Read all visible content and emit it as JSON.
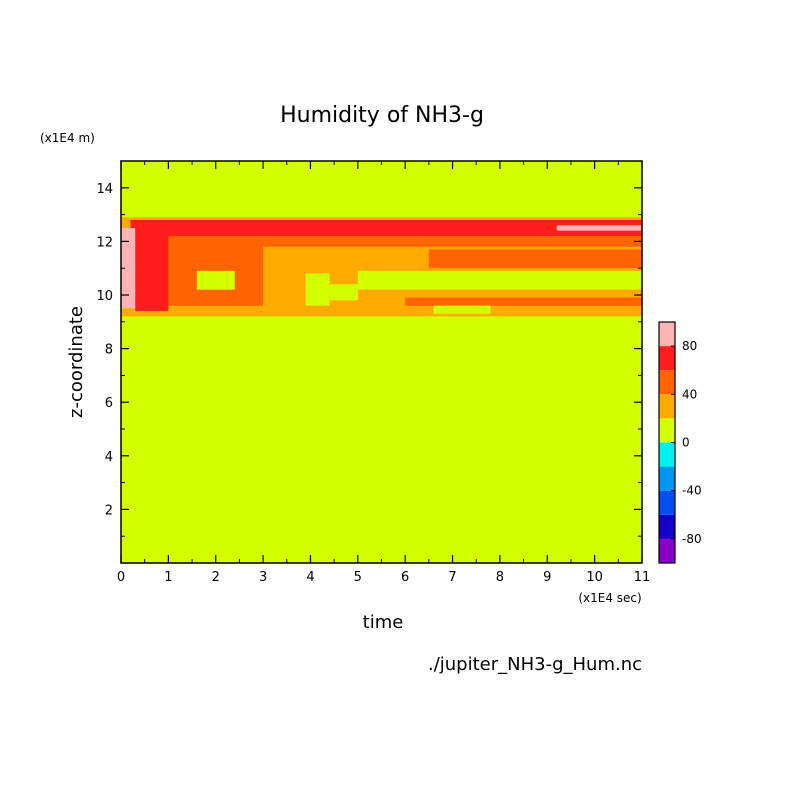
{
  "chart_data": {
    "type": "heatmap",
    "title": "Humidity of NH3-g",
    "xlabel": "time",
    "ylabel": "z-coordinate",
    "x_unit": "(x1E4 sec)",
    "y_unit": "(x1E4 m)",
    "source_file": "./jupiter_NH3-g_Hum.nc",
    "xlim": [
      0,
      11
    ],
    "ylim": [
      0,
      15
    ],
    "x_ticks": [
      0,
      1,
      2,
      3,
      4,
      5,
      6,
      7,
      8,
      9,
      10,
      11
    ],
    "y_ticks": [
      2,
      4,
      6,
      8,
      10,
      12,
      14
    ],
    "colorbar": {
      "levels": [
        -100,
        -80,
        -60,
        -40,
        -20,
        0,
        20,
        40,
        60,
        80,
        100
      ],
      "tick_labels": [
        "-80",
        "-40",
        "0",
        "40",
        "80"
      ],
      "tick_values": [
        -80,
        -40,
        0,
        40,
        80
      ],
      "colors": [
        "#8a00c8",
        "#1400c8",
        "#0050f0",
        "#0096f0",
        "#00f0f0",
        "#d4ff00",
        "#ffaa00",
        "#ff6400",
        "#ff1e1e",
        "#ffb4b4"
      ]
    },
    "background_level": 10,
    "regions": [
      {
        "level": 30,
        "x": [
          0.0,
          11.0
        ],
        "y": [
          9.2,
          12.9
        ]
      },
      {
        "level": 50,
        "x": [
          0.2,
          11.0
        ],
        "y": [
          11.8,
          12.8
        ]
      },
      {
        "level": 50,
        "x": [
          0.2,
          3.0
        ],
        "y": [
          9.6,
          12.2
        ]
      },
      {
        "level": 50,
        "x": [
          6.5,
          11.0
        ],
        "y": [
          11.0,
          11.7
        ]
      },
      {
        "level": 50,
        "x": [
          6.0,
          11.0
        ],
        "y": [
          9.6,
          9.9
        ]
      },
      {
        "level": 70,
        "x": [
          0.2,
          11.0
        ],
        "y": [
          12.2,
          12.8
        ]
      },
      {
        "level": 70,
        "x": [
          0.3,
          1.0
        ],
        "y": [
          9.4,
          12.6
        ]
      },
      {
        "level": 90,
        "x": [
          0.0,
          0.3
        ],
        "y": [
          9.5,
          12.5
        ]
      },
      {
        "level": 90,
        "x": [
          9.2,
          11.0
        ],
        "y": [
          12.4,
          12.6
        ]
      },
      {
        "level": 10,
        "x": [
          1.6,
          2.4
        ],
        "y": [
          10.2,
          10.9
        ]
      },
      {
        "level": 10,
        "x": [
          3.9,
          4.4
        ],
        "y": [
          9.6,
          10.8
        ]
      },
      {
        "level": 10,
        "x": [
          4.4,
          5.0
        ],
        "y": [
          9.8,
          10.4
        ]
      },
      {
        "level": 10,
        "x": [
          5.0,
          11.0
        ],
        "y": [
          10.2,
          10.9
        ]
      },
      {
        "level": 10,
        "x": [
          6.6,
          7.8
        ],
        "y": [
          9.3,
          9.6
        ]
      }
    ]
  }
}
